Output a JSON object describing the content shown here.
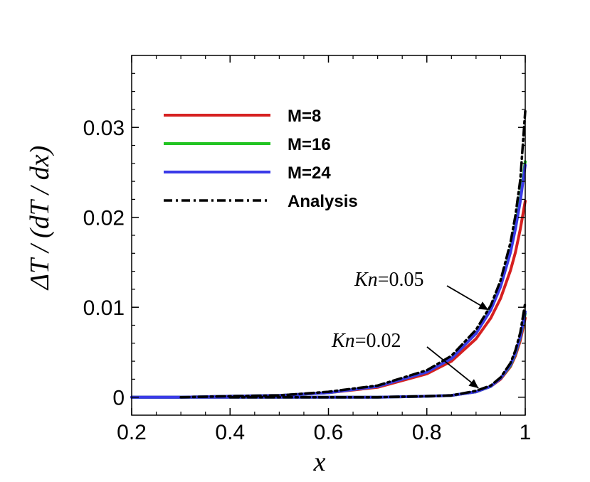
{
  "chart_data": {
    "type": "line",
    "title": "",
    "xlabel": "x",
    "ylabel": "ΔT / (dT / dx)",
    "xlim": [
      0.2,
      1.0
    ],
    "ylim": [
      -0.002,
      0.038
    ],
    "xticks": [
      0.2,
      0.4,
      0.6,
      0.8,
      1.0
    ],
    "xtick_labels": [
      "0.2",
      "0.4",
      "0.6",
      "0.8",
      "1"
    ],
    "yticks": [
      0,
      0.01,
      0.02,
      0.03
    ],
    "ytick_labels": [
      "0",
      "0.01",
      "0.02",
      "0.03"
    ],
    "legend_position": "top-left",
    "legend": [
      {
        "label": "M=8",
        "color": "#d62020",
        "style": "solid"
      },
      {
        "label": "M=16",
        "color": "#22c422",
        "style": "solid"
      },
      {
        "label": "M=24",
        "color": "#3a3ae8",
        "style": "solid"
      },
      {
        "label": "Analysis",
        "color": "#000000",
        "style": "dashdot"
      }
    ],
    "series": [
      {
        "name": "M=8",
        "group": "Kn=0.05",
        "x": [
          0.2,
          0.3,
          0.4,
          0.5,
          0.6,
          0.7,
          0.8,
          0.85,
          0.9,
          0.93,
          0.95,
          0.97,
          0.98,
          0.99,
          1.0
        ],
        "y": [
          0.0,
          0.0,
          0.0001,
          0.0002,
          0.0005,
          0.0011,
          0.0026,
          0.004,
          0.0065,
          0.0088,
          0.011,
          0.0141,
          0.0161,
          0.0187,
          0.0218
        ]
      },
      {
        "name": "M=16",
        "group": "Kn=0.05",
        "x": [
          0.2,
          0.3,
          0.4,
          0.5,
          0.6,
          0.7,
          0.8,
          0.85,
          0.9,
          0.93,
          0.95,
          0.97,
          0.98,
          0.99,
          1.0
        ],
        "y": [
          0.0,
          0.0,
          0.0001,
          0.0002,
          0.0005,
          0.0012,
          0.0028,
          0.0043,
          0.0071,
          0.0098,
          0.0124,
          0.0163,
          0.019,
          0.0222,
          0.0262
        ]
      },
      {
        "name": "M=24",
        "group": "Kn=0.05",
        "x": [
          0.2,
          0.3,
          0.4,
          0.5,
          0.6,
          0.7,
          0.8,
          0.85,
          0.9,
          0.93,
          0.95,
          0.97,
          0.98,
          0.99,
          1.0
        ],
        "y": [
          0.0,
          0.0,
          0.0001,
          0.0002,
          0.0005,
          0.0012,
          0.0028,
          0.0043,
          0.0071,
          0.0097,
          0.0123,
          0.0161,
          0.0187,
          0.0218,
          0.0258
        ]
      },
      {
        "name": "Analysis",
        "group": "Kn=0.05",
        "x": [
          0.3,
          0.4,
          0.5,
          0.6,
          0.7,
          0.8,
          0.85,
          0.9,
          0.93,
          0.95,
          0.97,
          0.98,
          0.99,
          1.0
        ],
        "y": [
          0.0,
          0.0001,
          0.0002,
          0.0006,
          0.0013,
          0.003,
          0.0046,
          0.0075,
          0.0102,
          0.013,
          0.0172,
          0.0202,
          0.0242,
          0.0318
        ]
      },
      {
        "name": "M=8",
        "group": "Kn=0.02",
        "x": [
          0.2,
          0.5,
          0.7,
          0.8,
          0.85,
          0.9,
          0.93,
          0.95,
          0.97,
          0.98,
          0.99,
          1.0
        ],
        "y": [
          0.0,
          0.0,
          0.0,
          0.0001,
          0.0002,
          0.0006,
          0.0012,
          0.002,
          0.0034,
          0.0046,
          0.0063,
          0.0088
        ]
      },
      {
        "name": "M=16",
        "group": "Kn=0.02",
        "x": [
          0.2,
          0.5,
          0.7,
          0.8,
          0.85,
          0.9,
          0.93,
          0.95,
          0.97,
          0.98,
          0.99,
          1.0
        ],
        "y": [
          0.0,
          0.0,
          0.0,
          0.0001,
          0.0002,
          0.0006,
          0.0012,
          0.0021,
          0.0035,
          0.0048,
          0.0066,
          0.0093
        ]
      },
      {
        "name": "M=24",
        "group": "Kn=0.02",
        "x": [
          0.2,
          0.5,
          0.7,
          0.8,
          0.85,
          0.9,
          0.93,
          0.95,
          0.97,
          0.98,
          0.99,
          1.0
        ],
        "y": [
          0.0,
          0.0,
          0.0,
          0.0001,
          0.0002,
          0.0006,
          0.0012,
          0.0021,
          0.0036,
          0.0049,
          0.0067,
          0.0095
        ]
      },
      {
        "name": "Analysis",
        "group": "Kn=0.02",
        "x": [
          0.4,
          0.5,
          0.7,
          0.8,
          0.85,
          0.9,
          0.93,
          0.95,
          0.97,
          0.98,
          0.99,
          1.0
        ],
        "y": [
          0.0,
          0.0,
          0.0,
          0.0001,
          0.0002,
          0.0007,
          0.0013,
          0.0022,
          0.0038,
          0.0052,
          0.0072,
          0.0105
        ]
      }
    ],
    "annotations": [
      {
        "prefix": "Kn",
        "suffix": "=0.05",
        "arrow_to": [
          0.925,
          0.0097
        ]
      },
      {
        "prefix": "Kn",
        "suffix": "=0.02",
        "arrow_to": [
          0.905,
          0.001
        ]
      }
    ]
  }
}
